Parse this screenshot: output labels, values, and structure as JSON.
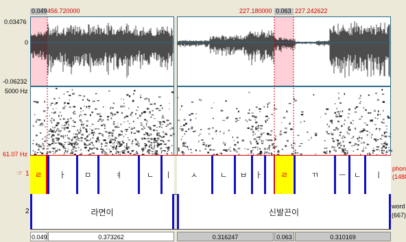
{
  "top_ruler": {
    "left_sel_dur": "0.049",
    "left_time": "456.720000",
    "right_time_a": "227.180000",
    "right_sel_dur": "0.063",
    "right_time_b": "227.242622"
  },
  "waveform": {
    "ymax": "0.03476",
    "yzero": "0",
    "ymin": "-0.06232"
  },
  "spectrogram": {
    "fmax": "5000 Hz",
    "fmin": "61.07 Hz"
  },
  "tier1": {
    "number": "1",
    "name_line1": "phone",
    "name_line2": "(1488",
    "left_segments": [
      "ㄹ",
      "ㅏ",
      "ㅁ",
      "ㅕ",
      "ㄴ",
      "ㅣ"
    ],
    "right_segments": [
      "ㅅ",
      "ㄴ",
      "ㅂ",
      "ㅏ",
      "ㄹ",
      "ㄲ",
      "ㅡ",
      "ㄴ",
      "ㅣ"
    ]
  },
  "tier2": {
    "number": "2",
    "name_line1": "word",
    "name_line2": "(667)",
    "left_word": "라면이",
    "right_word": "신발끈이"
  },
  "bottom_ruler": {
    "left_a": "0.049",
    "left_b": "0.373262",
    "right_a": "0.316247",
    "right_b": "0.063",
    "right_c": "0.310169"
  },
  "colors": {
    "selection": "#ffd0d8",
    "highlight": "#ffff00",
    "boundary": "#1010c0",
    "frame": "#2a6a8a"
  }
}
